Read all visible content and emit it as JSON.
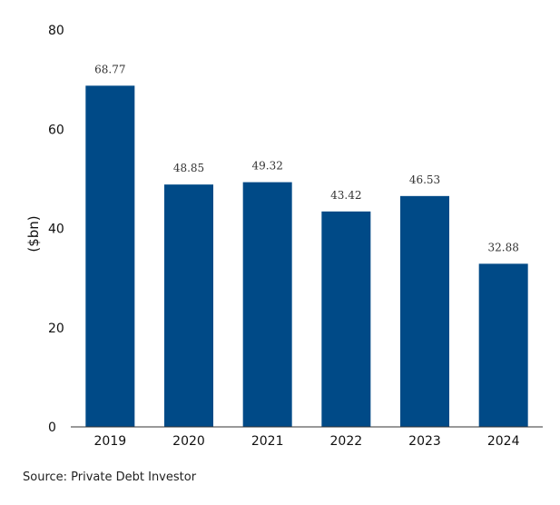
{
  "chart_data": {
    "type": "bar",
    "categories": [
      "2019",
      "2020",
      "2021",
      "2022",
      "2023",
      "2024"
    ],
    "values": [
      68.77,
      48.85,
      49.32,
      43.42,
      46.53,
      32.88
    ],
    "value_labels": [
      "68.77",
      "48.85",
      "49.32",
      "43.42",
      "46.53",
      "32.88"
    ],
    "ylabel": "($bn)",
    "ylim": [
      0,
      80
    ],
    "yticks": [
      0,
      20,
      40,
      60,
      80
    ],
    "ytick_labels": [
      "0",
      "20",
      "40",
      "60",
      "80"
    ],
    "grid": false,
    "bar_color": "#004a87",
    "axis_color": "#333333"
  },
  "source": "Source: Private Debt Investor"
}
